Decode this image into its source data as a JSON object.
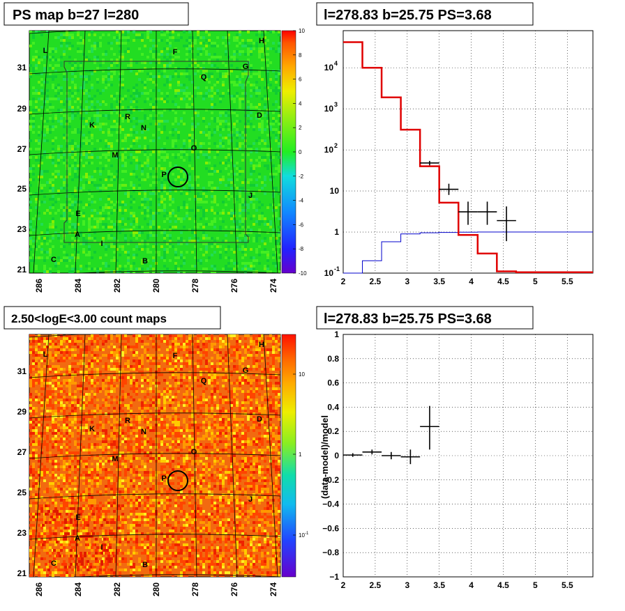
{
  "panels": {
    "top_left": {
      "title": "PS map b=27 l=280"
    },
    "top_right": {
      "title": "l=278.83 b=25.75 PS=3.68"
    },
    "bottom_left": {
      "title": "2.50<logE<3.00 count maps"
    },
    "bottom_right": {
      "title": "l=278.83 b=25.75 PS=3.68"
    }
  },
  "colors": {
    "model_hist": "#e00000",
    "baseline_hist": "#0000cc",
    "data_points": "#000000",
    "map_ps_base": "#22dd22",
    "map_counts_base": "#f06010"
  },
  "chart_data": [
    {
      "type": "heatmap",
      "title": "PS map b=27 l=280",
      "x_ticks": [
        "286",
        "284",
        "282",
        "280",
        "278",
        "276",
        "274"
      ],
      "y_ticks": [
        "31",
        "29",
        "27",
        "25",
        "23",
        "21"
      ],
      "colorbar_ticks": [
        "10",
        "8",
        "6",
        "4",
        "2",
        "0",
        "-2",
        "-4",
        "-6",
        "-8",
        "-10"
      ],
      "zlim": [
        -10,
        10
      ],
      "source_labels": [
        {
          "name": "L"
        },
        {
          "name": "F"
        },
        {
          "name": "H"
        },
        {
          "name": "G"
        },
        {
          "name": "Q"
        },
        {
          "name": "R"
        },
        {
          "name": "K"
        },
        {
          "name": "N"
        },
        {
          "name": "D"
        },
        {
          "name": "O"
        },
        {
          "name": "M"
        },
        {
          "name": "P"
        },
        {
          "name": "J"
        },
        {
          "name": "E"
        },
        {
          "name": "A"
        },
        {
          "name": "I"
        },
        {
          "name": "C"
        },
        {
          "name": "B"
        }
      ],
      "circled_source": {
        "l": 278.83,
        "b": 25.75
      }
    },
    {
      "type": "line",
      "title": "l=278.83 b=25.75 PS=3.68",
      "x_ticks": [
        "2",
        "2.5",
        "3",
        "3.5",
        "4",
        "4.5",
        "5",
        "5.5"
      ],
      "y_ticks": [
        "10<sup>-1</sup>",
        "1",
        "10",
        "10²",
        "10³",
        "10⁴"
      ],
      "y_tick_labels": [
        "10",
        "1",
        "10",
        "10",
        "10",
        "10"
      ],
      "y_tick_exponents": [
        "-1",
        "",
        "",
        "2",
        "3",
        "4"
      ],
      "xlim": [
        2,
        5.9
      ],
      "ylim": [
        0.1,
        80000
      ],
      "yscale": "log",
      "grid": true,
      "series": [
        {
          "values": [
            42000,
            10000,
            1900,
            310,
            40,
            5.2,
            0.85,
            0.3,
            0.11,
            0.105,
            0.105,
            0.105,
            0.105
          ]
        },
        {
          "values": [
            0.09,
            0.2,
            0.58,
            0.9,
            0.96,
            0.98,
            0.99,
            1.0,
            1.0,
            1.0,
            1.0,
            1.0,
            1.0
          ]
        }
      ],
      "bin_edges": [
        2.0,
        2.3,
        2.6,
        2.9,
        3.2,
        3.5,
        3.8,
        4.1,
        4.4,
        4.7,
        5.0,
        5.3,
        5.6,
        5.9
      ],
      "points": [
        {
          "x": 3.35,
          "y": 48,
          "xerr": 0.15,
          "ylo": 42,
          "yhi": 54
        },
        {
          "x": 3.65,
          "y": 11,
          "xerr": 0.15,
          "ylo": 8,
          "yhi": 15
        },
        {
          "x": 3.95,
          "y": 3.1,
          "xerr": 0.15,
          "ylo": 1.5,
          "yhi": 5.5
        },
        {
          "x": 4.25,
          "y": 3.1,
          "xerr": 0.15,
          "ylo": 1.5,
          "yhi": 5.5
        },
        {
          "x": 4.55,
          "y": 1.9,
          "xerr": 0.15,
          "ylo": 0.6,
          "yhi": 4.2
        }
      ]
    },
    {
      "type": "heatmap",
      "title": "2.50<logE<3.00 count maps",
      "x_ticks": [
        "286",
        "284",
        "282",
        "280",
        "278",
        "276",
        "274"
      ],
      "y_ticks": [
        "31",
        "29",
        "27",
        "25",
        "23",
        "21"
      ],
      "colorbar_ticks": [
        "10",
        "1"
      ],
      "colorbar_tick_exponents": [
        {
          "base": "10",
          "exp": "-1"
        }
      ],
      "zscale": "log"
    },
    {
      "type": "scatter",
      "title": "l=278.83 b=25.75 PS=3.68",
      "ylabel": "(data-model)/model",
      "x_ticks": [
        "2",
        "2.5",
        "3",
        "3.5",
        "4",
        "4.5",
        "5",
        "5.5"
      ],
      "y_ticks": [
        "1",
        "0.8",
        "0.6",
        "0.4",
        "0.2",
        "0",
        "−0.2",
        "−0.4",
        "−0.6",
        "−0.8",
        "−1"
      ],
      "xlim": [
        2,
        5.9
      ],
      "ylim": [
        -1,
        1
      ],
      "grid": true,
      "points": [
        {
          "x": 2.15,
          "y": 0.005,
          "xerr": 0.15,
          "ylo": -0.01,
          "yhi": 0.02
        },
        {
          "x": 2.45,
          "y": 0.03,
          "xerr": 0.15,
          "ylo": 0.01,
          "yhi": 0.05
        },
        {
          "x": 2.75,
          "y": 0.0,
          "xerr": 0.15,
          "ylo": -0.03,
          "yhi": 0.03
        },
        {
          "x": 3.05,
          "y": -0.01,
          "xerr": 0.15,
          "ylo": -0.07,
          "yhi": 0.05
        },
        {
          "x": 3.35,
          "y": 0.24,
          "xerr": 0.15,
          "ylo": 0.05,
          "yhi": 0.41
        }
      ]
    }
  ]
}
